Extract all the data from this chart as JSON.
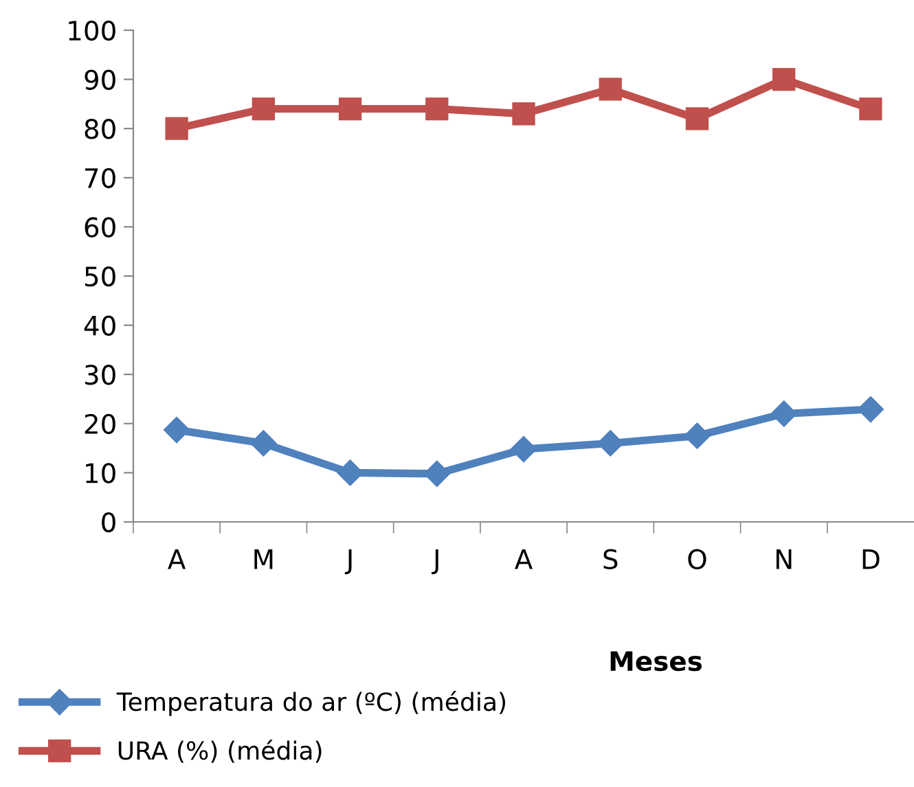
{
  "chart_data": {
    "type": "line",
    "xlabel": "Meses",
    "categories": [
      "A",
      "M",
      "J",
      "J",
      "A",
      "S",
      "O",
      "N",
      "D"
    ],
    "series": [
      {
        "name": "Temperatura do ar (ºC) (média)",
        "color": "#4f81bd",
        "marker": "diamond",
        "values": [
          18.7,
          16,
          10,
          9.8,
          14.8,
          16,
          17.5,
          22,
          22.9
        ]
      },
      {
        "name": "URA (%) (média)",
        "color": "#c0504d",
        "marker": "square",
        "values": [
          80,
          84,
          84,
          84,
          83,
          88,
          82,
          90,
          84
        ]
      }
    ],
    "ylim": [
      0,
      100
    ],
    "yticks": [
      0,
      10,
      20,
      30,
      40,
      50,
      60,
      70,
      80,
      90,
      100
    ],
    "grid": false,
    "legend": "bottom"
  }
}
